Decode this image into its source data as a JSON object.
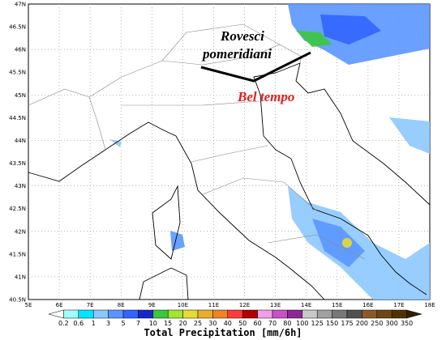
{
  "map": {
    "lat_ticks": [
      "47N",
      "46.5N",
      "46N",
      "45.5N",
      "45N",
      "44.5N",
      "44N",
      "43.5N",
      "43N",
      "42.5N",
      "42N",
      "41.5N",
      "41N",
      "40.5N"
    ],
    "lon_ticks": [
      "5E",
      "6E",
      "7E",
      "8E",
      "9E",
      "10E",
      "11E",
      "12E",
      "13E",
      "14E",
      "15E",
      "16E",
      "17E",
      "18E"
    ],
    "annotations": [
      "Rovesci",
      "pomeridiani",
      "Bel tempo"
    ],
    "colorbar": {
      "title": "Total Precipitation [mm/6h]",
      "labels": [
        "0.2",
        "0.6",
        "1",
        "3",
        "5",
        "7",
        "10",
        "15",
        "20",
        "25",
        "30",
        "40",
        "50",
        "60",
        "70",
        "80",
        "100",
        "125",
        "150",
        "175",
        "200",
        "250",
        "300",
        "350"
      ],
      "colors": [
        "#ffffff",
        "#a0fffa",
        "#00e6ff",
        "#8cc8ff",
        "#5a96ff",
        "#3264ff",
        "#1428c8",
        "#3cc83c",
        "#a0e632",
        "#e6dc32",
        "#e6af2d",
        "#f08228",
        "#fa3c3c",
        "#b40000",
        "#f0a0e6",
        "#c850c8",
        "#8c2896",
        "#c8c8c8",
        "#a0a0a0",
        "#787878",
        "#505050",
        "#8c5a28",
        "#6e4614",
        "#503200",
        "#321e00"
      ]
    }
  }
}
